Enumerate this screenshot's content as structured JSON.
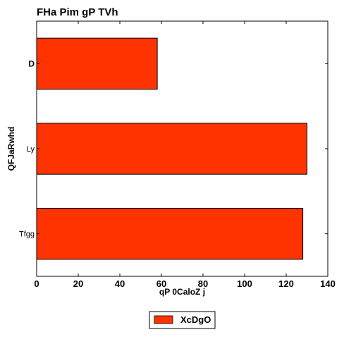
{
  "chart_data": {
    "type": "bar",
    "orientation": "horizontal",
    "title": "FHa Pim gP TVh",
    "xlabel": "qP 0CaloZ j",
    "ylabel": "QFJaRwhd",
    "categories": [
      "D",
      "Ly",
      "Tfgg"
    ],
    "series": [
      {
        "name": "XcDgO",
        "values": [
          58,
          130,
          128
        ],
        "color": "#ff3300"
      }
    ],
    "xlim": [
      0,
      140
    ],
    "xticks": [
      0,
      20,
      40,
      60,
      80,
      100,
      120,
      140
    ],
    "grid": false,
    "legend": "bottom-center"
  }
}
